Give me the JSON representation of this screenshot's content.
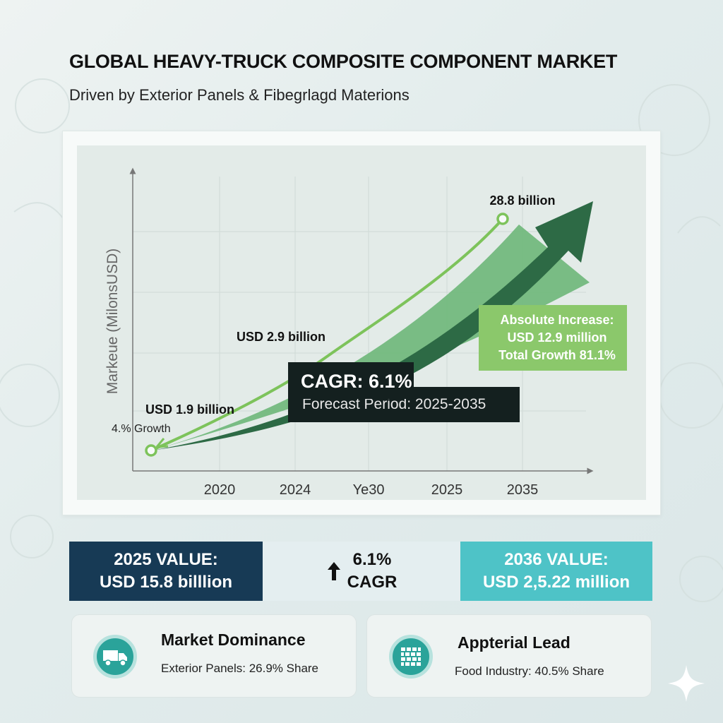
{
  "header": {
    "title": "GLOBAL HEAVY-TRUCK COMPOSITE COMPONENT MARKET",
    "subtitle": "Driven by Exterior Panels & Fibegrlagd Materions"
  },
  "chart_data": {
    "type": "line",
    "ylabel": "Markeue (MilonsUSD)",
    "xlabel": "",
    "x_ticks": [
      "2020",
      "2024",
      "Ye30",
      "2025",
      "2035"
    ],
    "grid": true,
    "series": [
      {
        "points": [
          {
            "x": "start",
            "label": "USD 1.9 billion",
            "note": "4.% Growth"
          },
          {
            "x": "mid",
            "label": "USD 2.9 billion"
          },
          {
            "x": "end",
            "label": "28.8 billion"
          }
        ]
      }
    ],
    "annotations": {
      "cagr": "CAGR: 6.1%",
      "forecast": "Forecast Period: 2025-2035",
      "increase_line1": "Absolute Increase:",
      "increase_line2": "USD 12.9 million",
      "increase_line3": "Total Growth 81.1%"
    }
  },
  "stats": {
    "left_line1": "2025 VALUE:",
    "left_line2": "USD 15.8 billlion",
    "center_value": "6.1%",
    "center_label": "CAGR",
    "right_line1": "2036 VALUE:",
    "right_line2": "USD 2,5.22 million"
  },
  "cards": [
    {
      "title": "Market Dominance",
      "subtitle": "Exterior Panels: 26.9% Share",
      "icon": "truck-icon"
    },
    {
      "title": "Appterial Lead",
      "subtitle": "Food Industry: 40.5% Share",
      "icon": "grid-material-icon"
    }
  ],
  "colors": {
    "dark_navy": "#173a55",
    "teal": "#4ec3c7",
    "line_green": "#7dc35b",
    "arrow_dark_green": "#2d6a45",
    "arrow_light_green": "#6db779",
    "label_green": "#8bc86b"
  }
}
